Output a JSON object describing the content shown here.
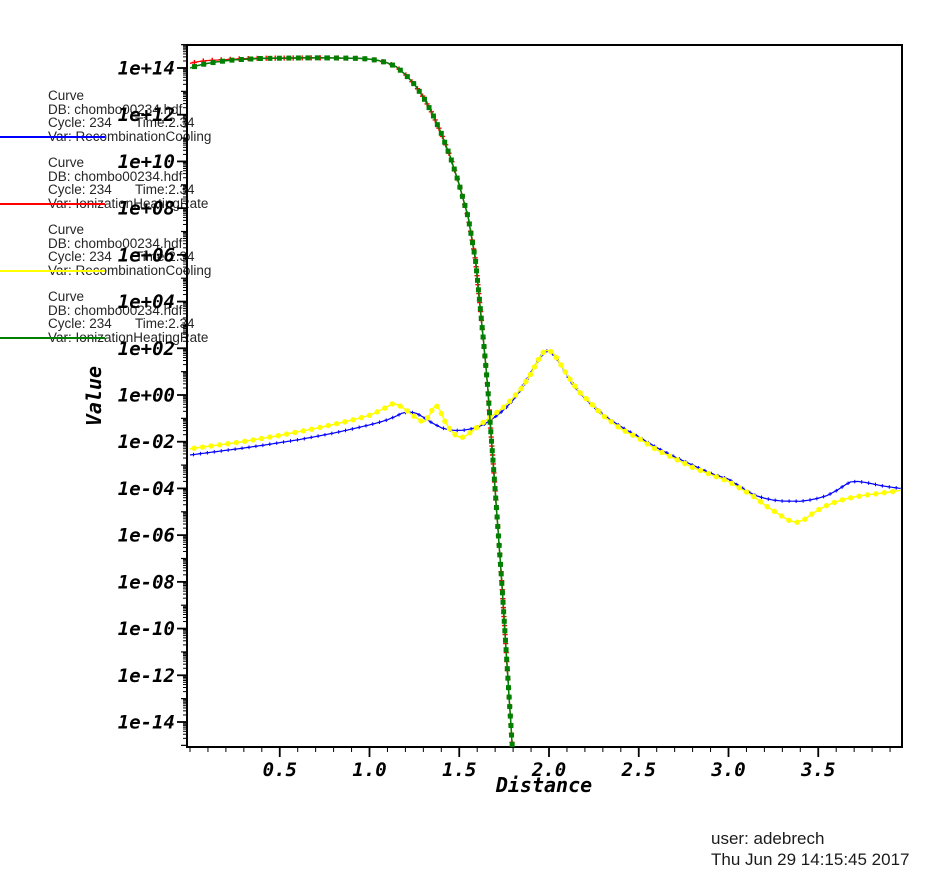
{
  "window": {
    "background": "#ffffff"
  },
  "legend": {
    "entries": [
      {
        "title": "Curve",
        "db": "DB: chombo00234.hdf",
        "cycle": "Cycle: 234",
        "time": "Time:2.34",
        "var": "Var: RecombinationCooling",
        "color": "#0000ff"
      },
      {
        "title": "Curve",
        "db": "DB: chombo00234.hdf",
        "cycle": "Cycle: 234",
        "time": "Time:2.34",
        "var": "Var: IonizationHeatingRate",
        "color": "#ff0000"
      },
      {
        "title": "Curve",
        "db": "DB: chombo00234.hdf",
        "cycle": "Cycle: 234",
        "time": "Time:2.34",
        "var": "Var: RecombinationCooling",
        "color": "#ffff00"
      },
      {
        "title": "Curve",
        "db": "DB: chombo00234.hdf",
        "cycle": "Cycle: 234",
        "time": "Time:2.34",
        "var": "Var: IonizationHeatingRate",
        "color": "#007f00"
      }
    ]
  },
  "footer": {
    "user": "user: adebrech",
    "timestamp": "Thu Jun 29 14:15:45 2017"
  },
  "chart_data": {
    "type": "line",
    "title": "",
    "xlabel": "Distance",
    "ylabel": "Value",
    "grid": false,
    "legend_position": "left",
    "x_axis": {
      "min": -0.02,
      "max": 3.97,
      "minor_step": 0.1,
      "ticks": [
        {
          "v": 0.5,
          "label": "0.5"
        },
        {
          "v": 1.0,
          "label": "1.0"
        },
        {
          "v": 1.5,
          "label": "1.5"
        },
        {
          "v": 2.0,
          "label": "2.0"
        },
        {
          "v": 2.5,
          "label": "2.5"
        },
        {
          "v": 3.0,
          "label": "3.0"
        },
        {
          "v": 3.5,
          "label": "3.5"
        }
      ]
    },
    "y_axis": {
      "scale": "log10",
      "min_log10": -15.1,
      "max_log10": 15.0,
      "ticks": [
        {
          "exp": 14,
          "label": "1e+14"
        },
        {
          "exp": 12,
          "label": "1e+12"
        },
        {
          "exp": 10,
          "label": "1e+10"
        },
        {
          "exp": 8,
          "label": "1e+08"
        },
        {
          "exp": 6,
          "label": "1e+06"
        },
        {
          "exp": 4,
          "label": "1e+04"
        },
        {
          "exp": 2,
          "label": "1e+02"
        },
        {
          "exp": 0,
          "label": "1e+00"
        },
        {
          "exp": -2,
          "label": "1e-02"
        },
        {
          "exp": -4,
          "label": "1e-04"
        },
        {
          "exp": -6,
          "label": "1e-06"
        },
        {
          "exp": -8,
          "label": "1e-08"
        },
        {
          "exp": -10,
          "label": "1e-10"
        },
        {
          "exp": -12,
          "label": "1e-12"
        },
        {
          "exp": -14,
          "label": "1e-14"
        }
      ]
    },
    "points_format": "each point is [distance, log10(value)]",
    "series": [
      {
        "name": "RecombinationCooling",
        "color": "#0000ff",
        "marker": "tick",
        "points": [
          [
            0,
            -2.57
          ],
          [
            0.1,
            -2.47
          ],
          [
            0.2,
            -2.37
          ],
          [
            0.3,
            -2.27
          ],
          [
            0.4,
            -2.16
          ],
          [
            0.5,
            -2.04
          ],
          [
            0.6,
            -1.92
          ],
          [
            0.7,
            -1.78
          ],
          [
            0.8,
            -1.63
          ],
          [
            0.9,
            -1.46
          ],
          [
            1.0,
            -1.28
          ],
          [
            1.05,
            -1.18
          ],
          [
            1.1,
            -1.06
          ],
          [
            1.15,
            -0.9
          ],
          [
            1.18,
            -0.78
          ],
          [
            1.22,
            -0.72
          ],
          [
            1.26,
            -0.78
          ],
          [
            1.3,
            -0.95
          ],
          [
            1.35,
            -1.2
          ],
          [
            1.4,
            -1.4
          ],
          [
            1.44,
            -1.49
          ],
          [
            1.48,
            -1.52
          ],
          [
            1.52,
            -1.51
          ],
          [
            1.56,
            -1.46
          ],
          [
            1.6,
            -1.38
          ],
          [
            1.64,
            -1.25
          ],
          [
            1.68,
            -1.05
          ],
          [
            1.72,
            -0.82
          ],
          [
            1.76,
            -0.55
          ],
          [
            1.8,
            -0.22
          ],
          [
            1.84,
            0.2
          ],
          [
            1.88,
            0.7
          ],
          [
            1.92,
            1.25
          ],
          [
            1.95,
            1.6
          ],
          [
            1.97,
            1.82
          ],
          [
            1.99,
            1.9
          ],
          [
            2.01,
            1.85
          ],
          [
            2.04,
            1.6
          ],
          [
            2.08,
            1.1
          ],
          [
            2.12,
            0.6
          ],
          [
            2.16,
            0.2
          ],
          [
            2.2,
            -0.15
          ],
          [
            2.3,
            -0.85
          ],
          [
            2.4,
            -1.35
          ],
          [
            2.5,
            -1.8
          ],
          [
            2.6,
            -2.25
          ],
          [
            2.7,
            -2.65
          ],
          [
            2.8,
            -3.0
          ],
          [
            2.9,
            -3.35
          ],
          [
            3.0,
            -3.6
          ],
          [
            3.05,
            -3.85
          ],
          [
            3.1,
            -4.1
          ],
          [
            3.15,
            -4.3
          ],
          [
            3.2,
            -4.42
          ],
          [
            3.25,
            -4.5
          ],
          [
            3.3,
            -4.54
          ],
          [
            3.4,
            -4.55
          ],
          [
            3.45,
            -4.5
          ],
          [
            3.5,
            -4.42
          ],
          [
            3.55,
            -4.3
          ],
          [
            3.6,
            -4.1
          ],
          [
            3.65,
            -3.85
          ],
          [
            3.68,
            -3.72
          ],
          [
            3.72,
            -3.7
          ],
          [
            3.76,
            -3.74
          ],
          [
            3.8,
            -3.8
          ],
          [
            3.85,
            -3.88
          ],
          [
            3.9,
            -3.94
          ],
          [
            3.96,
            -4.0
          ]
        ]
      },
      {
        "name": "IonizationHeatingRate",
        "color": "#ff0000",
        "marker": "plus",
        "points": [
          [
            0,
            14.2
          ],
          [
            0.05,
            14.28
          ],
          [
            0.1,
            14.32
          ],
          [
            0.15,
            14.34
          ],
          [
            0.2,
            14.36
          ],
          [
            0.25,
            14.38
          ],
          [
            0.3,
            14.4
          ],
          [
            0.4,
            14.42
          ],
          [
            0.5,
            14.425
          ],
          [
            0.6,
            14.43
          ],
          [
            0.7,
            14.435
          ],
          [
            0.8,
            14.43
          ],
          [
            0.9,
            14.42
          ],
          [
            0.95,
            14.41
          ],
          [
            1.0,
            14.38
          ],
          [
            1.05,
            14.32
          ],
          [
            1.1,
            14.22
          ],
          [
            1.15,
            14.05
          ],
          [
            1.2,
            13.72
          ],
          [
            1.25,
            13.3
          ],
          [
            1.3,
            12.75
          ],
          [
            1.35,
            12.05
          ],
          [
            1.4,
            11.2
          ],
          [
            1.45,
            10.2
          ],
          [
            1.5,
            9.0
          ],
          [
            1.55,
            7.6
          ],
          [
            1.59,
            5.8
          ],
          [
            1.62,
            3.5
          ],
          [
            1.645,
            1.5
          ],
          [
            1.66,
            0.2
          ],
          [
            1.675,
            -1.5
          ],
          [
            1.69,
            -3.0
          ],
          [
            1.705,
            -4.6
          ],
          [
            1.72,
            -6.2
          ],
          [
            1.735,
            -7.8
          ],
          [
            1.75,
            -9.6
          ],
          [
            1.765,
            -11.4
          ],
          [
            1.78,
            -13.2
          ],
          [
            1.795,
            -15.0
          ],
          [
            1.805,
            -16.0
          ]
        ]
      },
      {
        "name": "RecombinationCooling",
        "color": "#ffff00",
        "marker": "dot",
        "points": [
          [
            0,
            -2.3
          ],
          [
            0.1,
            -2.2
          ],
          [
            0.2,
            -2.1
          ],
          [
            0.3,
            -1.99
          ],
          [
            0.4,
            -1.86
          ],
          [
            0.5,
            -1.73
          ],
          [
            0.6,
            -1.58
          ],
          [
            0.7,
            -1.43
          ],
          [
            0.8,
            -1.26
          ],
          [
            0.9,
            -1.08
          ],
          [
            1.0,
            -0.87
          ],
          [
            1.05,
            -0.7
          ],
          [
            1.1,
            -0.5
          ],
          [
            1.13,
            -0.37
          ],
          [
            1.16,
            -0.42
          ],
          [
            1.2,
            -0.62
          ],
          [
            1.25,
            -0.92
          ],
          [
            1.29,
            -1.13
          ],
          [
            1.31,
            -1.12
          ],
          [
            1.33,
            -0.92
          ],
          [
            1.35,
            -0.62
          ],
          [
            1.37,
            -0.43
          ],
          [
            1.39,
            -0.62
          ],
          [
            1.42,
            -1.12
          ],
          [
            1.45,
            -1.5
          ],
          [
            1.48,
            -1.72
          ],
          [
            1.51,
            -1.84
          ],
          [
            1.54,
            -1.73
          ],
          [
            1.58,
            -1.5
          ],
          [
            1.62,
            -1.25
          ],
          [
            1.66,
            -1.02
          ],
          [
            1.7,
            -0.8
          ],
          [
            1.75,
            -0.5
          ],
          [
            1.8,
            -0.12
          ],
          [
            1.85,
            0.32
          ],
          [
            1.9,
            0.92
          ],
          [
            1.94,
            1.5
          ],
          [
            1.97,
            1.85
          ],
          [
            1.99,
            1.92
          ],
          [
            2.02,
            1.83
          ],
          [
            2.05,
            1.5
          ],
          [
            2.09,
            1.0
          ],
          [
            2.13,
            0.52
          ],
          [
            2.17,
            0.12
          ],
          [
            2.22,
            -0.25
          ],
          [
            2.3,
            -0.88
          ],
          [
            2.4,
            -1.45
          ],
          [
            2.5,
            -1.85
          ],
          [
            2.6,
            -2.35
          ],
          [
            2.7,
            -2.72
          ],
          [
            2.8,
            -3.1
          ],
          [
            2.9,
            -3.4
          ],
          [
            3.0,
            -3.7
          ],
          [
            3.1,
            -4.15
          ],
          [
            3.15,
            -4.4
          ],
          [
            3.2,
            -4.7
          ],
          [
            3.25,
            -4.95
          ],
          [
            3.3,
            -5.2
          ],
          [
            3.34,
            -5.38
          ],
          [
            3.38,
            -5.45
          ],
          [
            3.42,
            -5.35
          ],
          [
            3.46,
            -5.12
          ],
          [
            3.5,
            -4.92
          ],
          [
            3.55,
            -4.72
          ],
          [
            3.6,
            -4.57
          ],
          [
            3.65,
            -4.45
          ],
          [
            3.7,
            -4.37
          ],
          [
            3.75,
            -4.3
          ],
          [
            3.8,
            -4.25
          ],
          [
            3.85,
            -4.2
          ],
          [
            3.9,
            -4.15
          ],
          [
            3.96,
            -4.08
          ]
        ]
      },
      {
        "name": "IonizationHeatingRate",
        "color": "#007f00",
        "marker": "square",
        "points": [
          [
            0,
            14.0
          ],
          [
            0.05,
            14.12
          ],
          [
            0.1,
            14.2
          ],
          [
            0.15,
            14.26
          ],
          [
            0.2,
            14.31
          ],
          [
            0.25,
            14.35
          ],
          [
            0.3,
            14.37
          ],
          [
            0.4,
            14.41
          ],
          [
            0.5,
            14.42
          ],
          [
            0.6,
            14.43
          ],
          [
            0.7,
            14.435
          ],
          [
            0.8,
            14.43
          ],
          [
            0.9,
            14.42
          ],
          [
            0.95,
            14.41
          ],
          [
            1.0,
            14.38
          ],
          [
            1.05,
            14.32
          ],
          [
            1.1,
            14.22
          ],
          [
            1.15,
            14.05
          ],
          [
            1.2,
            13.72
          ],
          [
            1.25,
            13.3
          ],
          [
            1.3,
            12.75
          ],
          [
            1.35,
            12.05
          ],
          [
            1.4,
            11.2
          ],
          [
            1.45,
            10.2
          ],
          [
            1.5,
            9.0
          ],
          [
            1.55,
            7.6
          ],
          [
            1.59,
            5.8
          ],
          [
            1.62,
            3.5
          ],
          [
            1.645,
            1.5
          ],
          [
            1.66,
            0.2
          ],
          [
            1.675,
            -1.5
          ],
          [
            1.69,
            -3.0
          ],
          [
            1.705,
            -4.6
          ],
          [
            1.72,
            -6.2
          ],
          [
            1.735,
            -7.8
          ],
          [
            1.75,
            -9.6
          ],
          [
            1.765,
            -11.4
          ],
          [
            1.78,
            -13.2
          ],
          [
            1.795,
            -15.0
          ],
          [
            1.805,
            -16.0
          ]
        ]
      }
    ]
  }
}
